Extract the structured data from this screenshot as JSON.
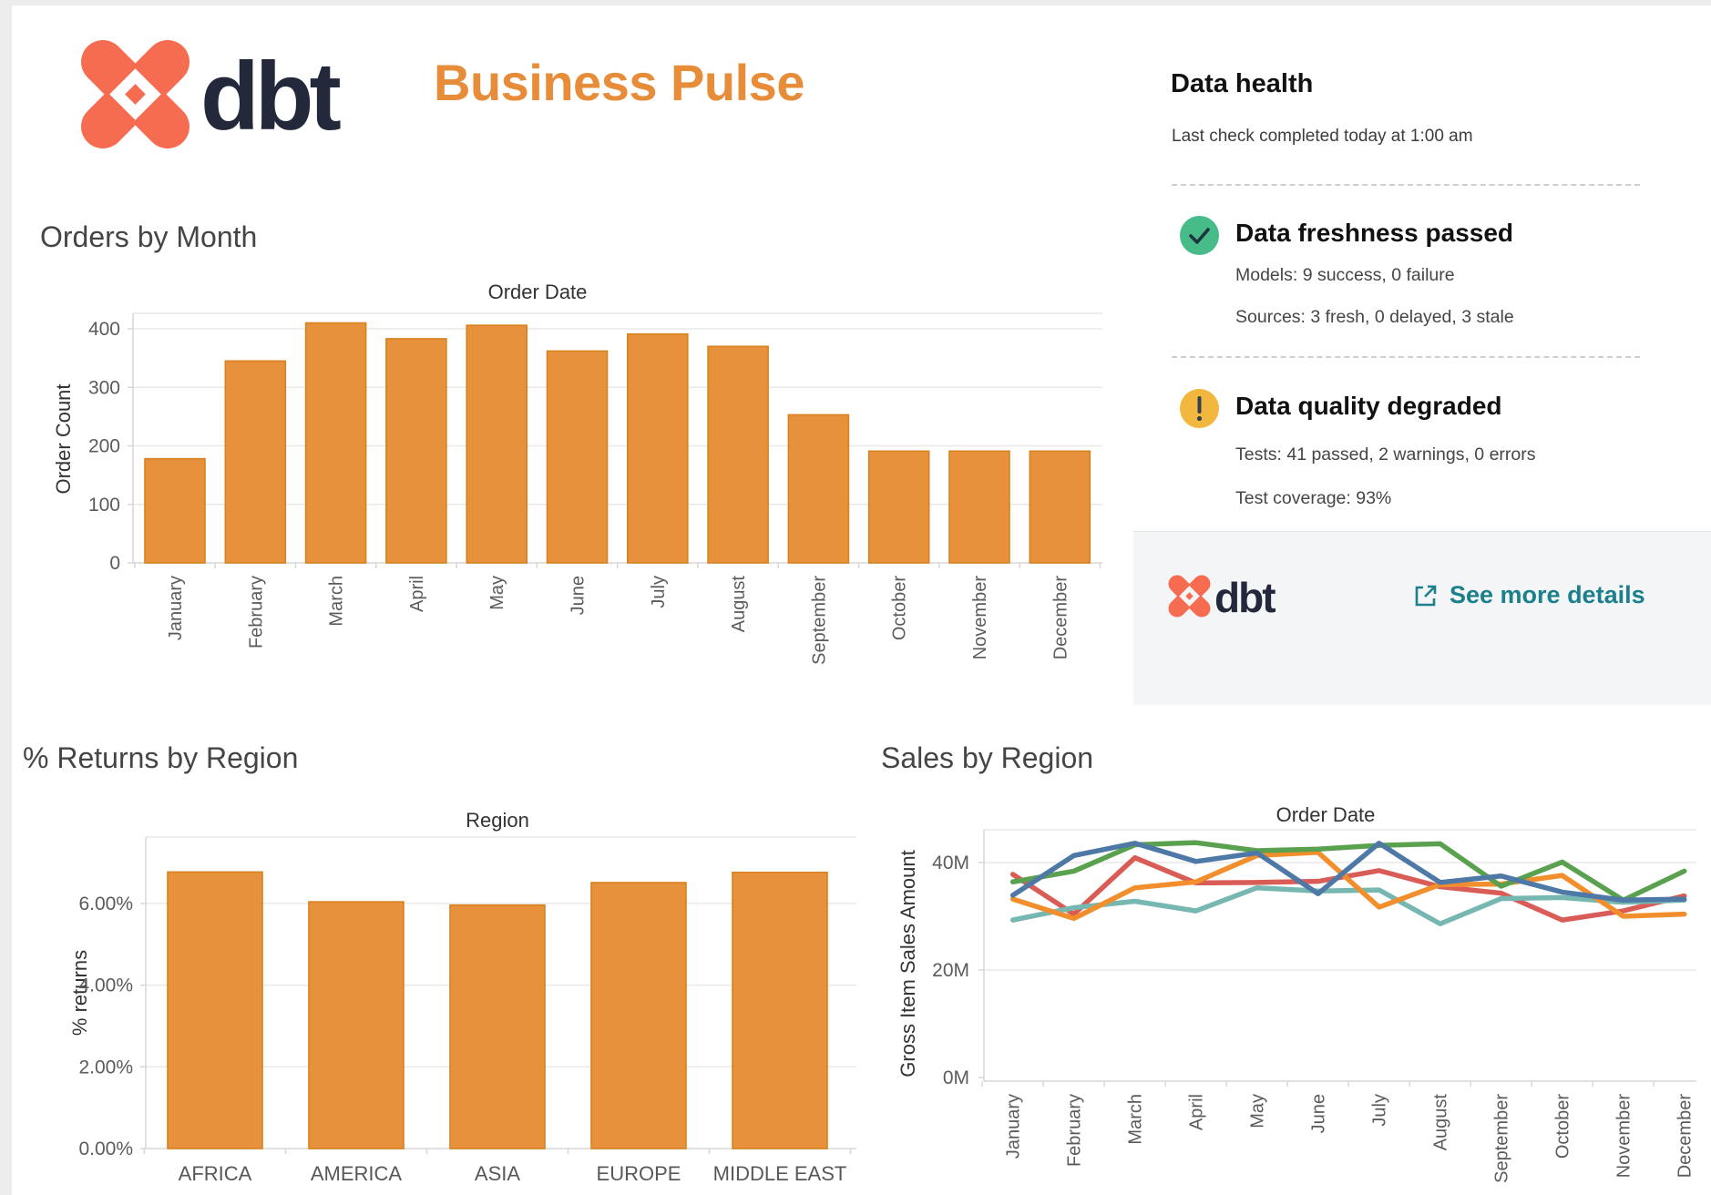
{
  "header": {
    "brand": "dbt",
    "title": "Business Pulse",
    "title_color": "#E78D3A",
    "brand_mark_color": "#F66C51",
    "brand_text_color": "#23293B"
  },
  "data_health": {
    "title": "Data health",
    "subtitle": "Last check completed today at 1:00 am",
    "items": [
      {
        "icon": "check",
        "color": "#47BC89",
        "title": "Data freshness passed",
        "lines": [
          "Models: 9 success, 0 failure",
          "Sources: 3 fresh, 0 delayed, 3 stale"
        ]
      },
      {
        "icon": "exclamation",
        "color": "#F2B73F",
        "title": "Data quality degraded",
        "lines": [
          "Tests: 41 passed, 2 warnings, 0 errors",
          "Test coverage: 93%"
        ]
      }
    ],
    "footer": {
      "brand": "dbt",
      "link_label": "See more details",
      "link_color": "#1B7F8C"
    }
  },
  "chart_data": [
    {
      "id": "orders",
      "type": "bar",
      "title": "Orders by Month",
      "xlabel": "Order Date",
      "ylabel": "Order Count",
      "categories": [
        "January",
        "February",
        "March",
        "April",
        "May",
        "June",
        "July",
        "August",
        "September",
        "October",
        "November",
        "December"
      ],
      "values": [
        178,
        345,
        410,
        383,
        406,
        362,
        391,
        370,
        253,
        191,
        191,
        191
      ],
      "ylim": [
        0,
        430
      ],
      "yticks": [
        0,
        100,
        200,
        300,
        400
      ],
      "ytick_labels": [
        "0",
        "100",
        "200",
        "300",
        "400"
      ],
      "bar_color": "#E7913D",
      "bar_border": "#D8821F",
      "grid": true,
      "legend": "none"
    },
    {
      "id": "returns",
      "type": "bar",
      "title": "% Returns by Region",
      "xlabel": "Region",
      "ylabel": "% returns",
      "categories": [
        "AFRICA",
        "AMERICA",
        "ASIA",
        "EUROPE",
        "MIDDLE EAST"
      ],
      "values": [
        6.77,
        6.04,
        5.96,
        6.51,
        6.76
      ],
      "ylim": [
        0,
        7.6
      ],
      "yticks": [
        0,
        2,
        4,
        6
      ],
      "ytick_labels": [
        "0.00%",
        "2.00%",
        "4.00%",
        "6.00%"
      ],
      "bar_color": "#E7913D",
      "bar_border": "#D8821F",
      "grid": true,
      "legend": "none"
    },
    {
      "id": "sales",
      "type": "line",
      "title": "Sales by Region",
      "xlabel": "Order Date",
      "ylabel": "Gross Item Sales Amount",
      "categories": [
        "January",
        "February",
        "March",
        "April",
        "May",
        "June",
        "July",
        "August",
        "September",
        "October",
        "November",
        "December"
      ],
      "yticks": [
        0,
        20,
        40
      ],
      "ytick_labels": [
        "0M",
        "20M",
        "40M"
      ],
      "ylim": [
        0,
        46
      ],
      "grid": true,
      "legend": "none",
      "series": [
        {
          "name": "series-red",
          "color": "#D95C57",
          "values": [
            37.8,
            30.4,
            40.9,
            36.2,
            36.3,
            36.5,
            38.5,
            35.5,
            34.3,
            29.3,
            31.0,
            33.8
          ]
        },
        {
          "name": "series-teal",
          "color": "#76B7B2",
          "values": [
            29.3,
            31.6,
            32.8,
            31.0,
            35.3,
            34.7,
            34.9,
            28.6,
            33.3,
            33.5,
            32.6,
            33.0
          ]
        },
        {
          "name": "series-orange",
          "color": "#F28E2B",
          "values": [
            33.2,
            29.6,
            35.3,
            36.4,
            41.3,
            41.9,
            31.7,
            35.9,
            36.0,
            37.6,
            30.0,
            30.4
          ]
        },
        {
          "name": "series-green",
          "color": "#59A14F",
          "values": [
            36.4,
            38.4,
            43.3,
            43.7,
            42.2,
            42.5,
            43.2,
            43.5,
            35.6,
            40.1,
            33.0,
            38.4
          ]
        },
        {
          "name": "series-blue",
          "color": "#4E79A7",
          "values": [
            33.9,
            41.3,
            43.6,
            40.2,
            41.8,
            34.2,
            43.6,
            36.3,
            37.5,
            34.5,
            33.0,
            33.2
          ]
        }
      ]
    }
  ]
}
